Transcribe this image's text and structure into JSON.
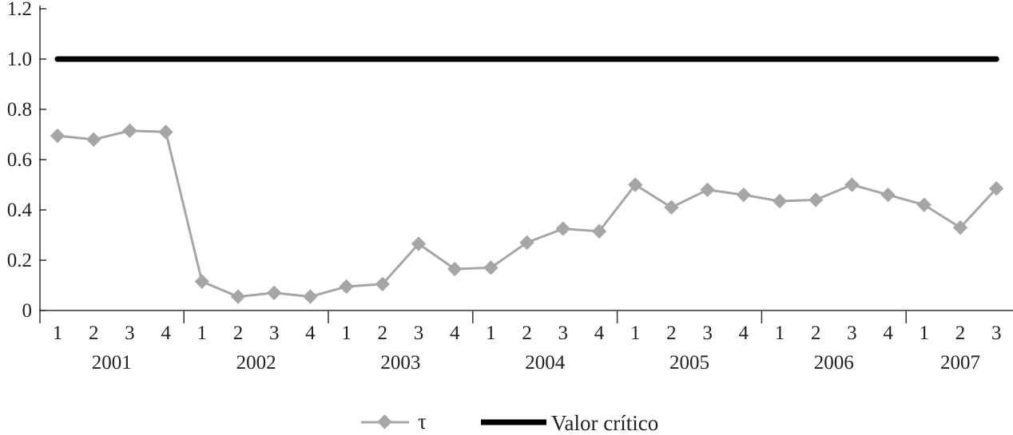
{
  "chart_data": {
    "type": "line",
    "categories": [
      "1",
      "2",
      "3",
      "4",
      "1",
      "2",
      "3",
      "4",
      "1",
      "2",
      "3",
      "4",
      "1",
      "2",
      "3",
      "4",
      "1",
      "2",
      "3",
      "4",
      "1",
      "2",
      "3",
      "4",
      "1",
      "2",
      "3"
    ],
    "year_groups": [
      {
        "label": "2001",
        "count": 4
      },
      {
        "label": "2002",
        "count": 4
      },
      {
        "label": "2003",
        "count": 4
      },
      {
        "label": "2004",
        "count": 4
      },
      {
        "label": "2005",
        "count": 4
      },
      {
        "label": "2006",
        "count": 4
      },
      {
        "label": "2007",
        "count": 3
      }
    ],
    "y_ticks": [
      "0",
      "0.2",
      "0.4",
      "0.6",
      "0.8",
      "1.0",
      "1.2"
    ],
    "ylim": [
      0,
      1.2
    ],
    "grid": false,
    "legend_position": "bottom",
    "series": [
      {
        "name": "τ",
        "color": "#a6a6a6",
        "marker": "diamond",
        "values": [
          0.695,
          0.68,
          0.715,
          0.71,
          0.115,
          0.055,
          0.07,
          0.055,
          0.095,
          0.105,
          0.265,
          0.165,
          0.17,
          0.27,
          0.325,
          0.315,
          0.5,
          0.41,
          0.48,
          0.46,
          0.435,
          0.44,
          0.5,
          0.46,
          0.42,
          0.33,
          0.485
        ]
      },
      {
        "name": "Valor crítico",
        "color": "#000000",
        "marker": "none",
        "values": [
          1,
          1,
          1,
          1,
          1,
          1,
          1,
          1,
          1,
          1,
          1,
          1,
          1,
          1,
          1,
          1,
          1,
          1,
          1,
          1,
          1,
          1,
          1,
          1,
          1,
          1,
          1
        ]
      }
    ]
  }
}
